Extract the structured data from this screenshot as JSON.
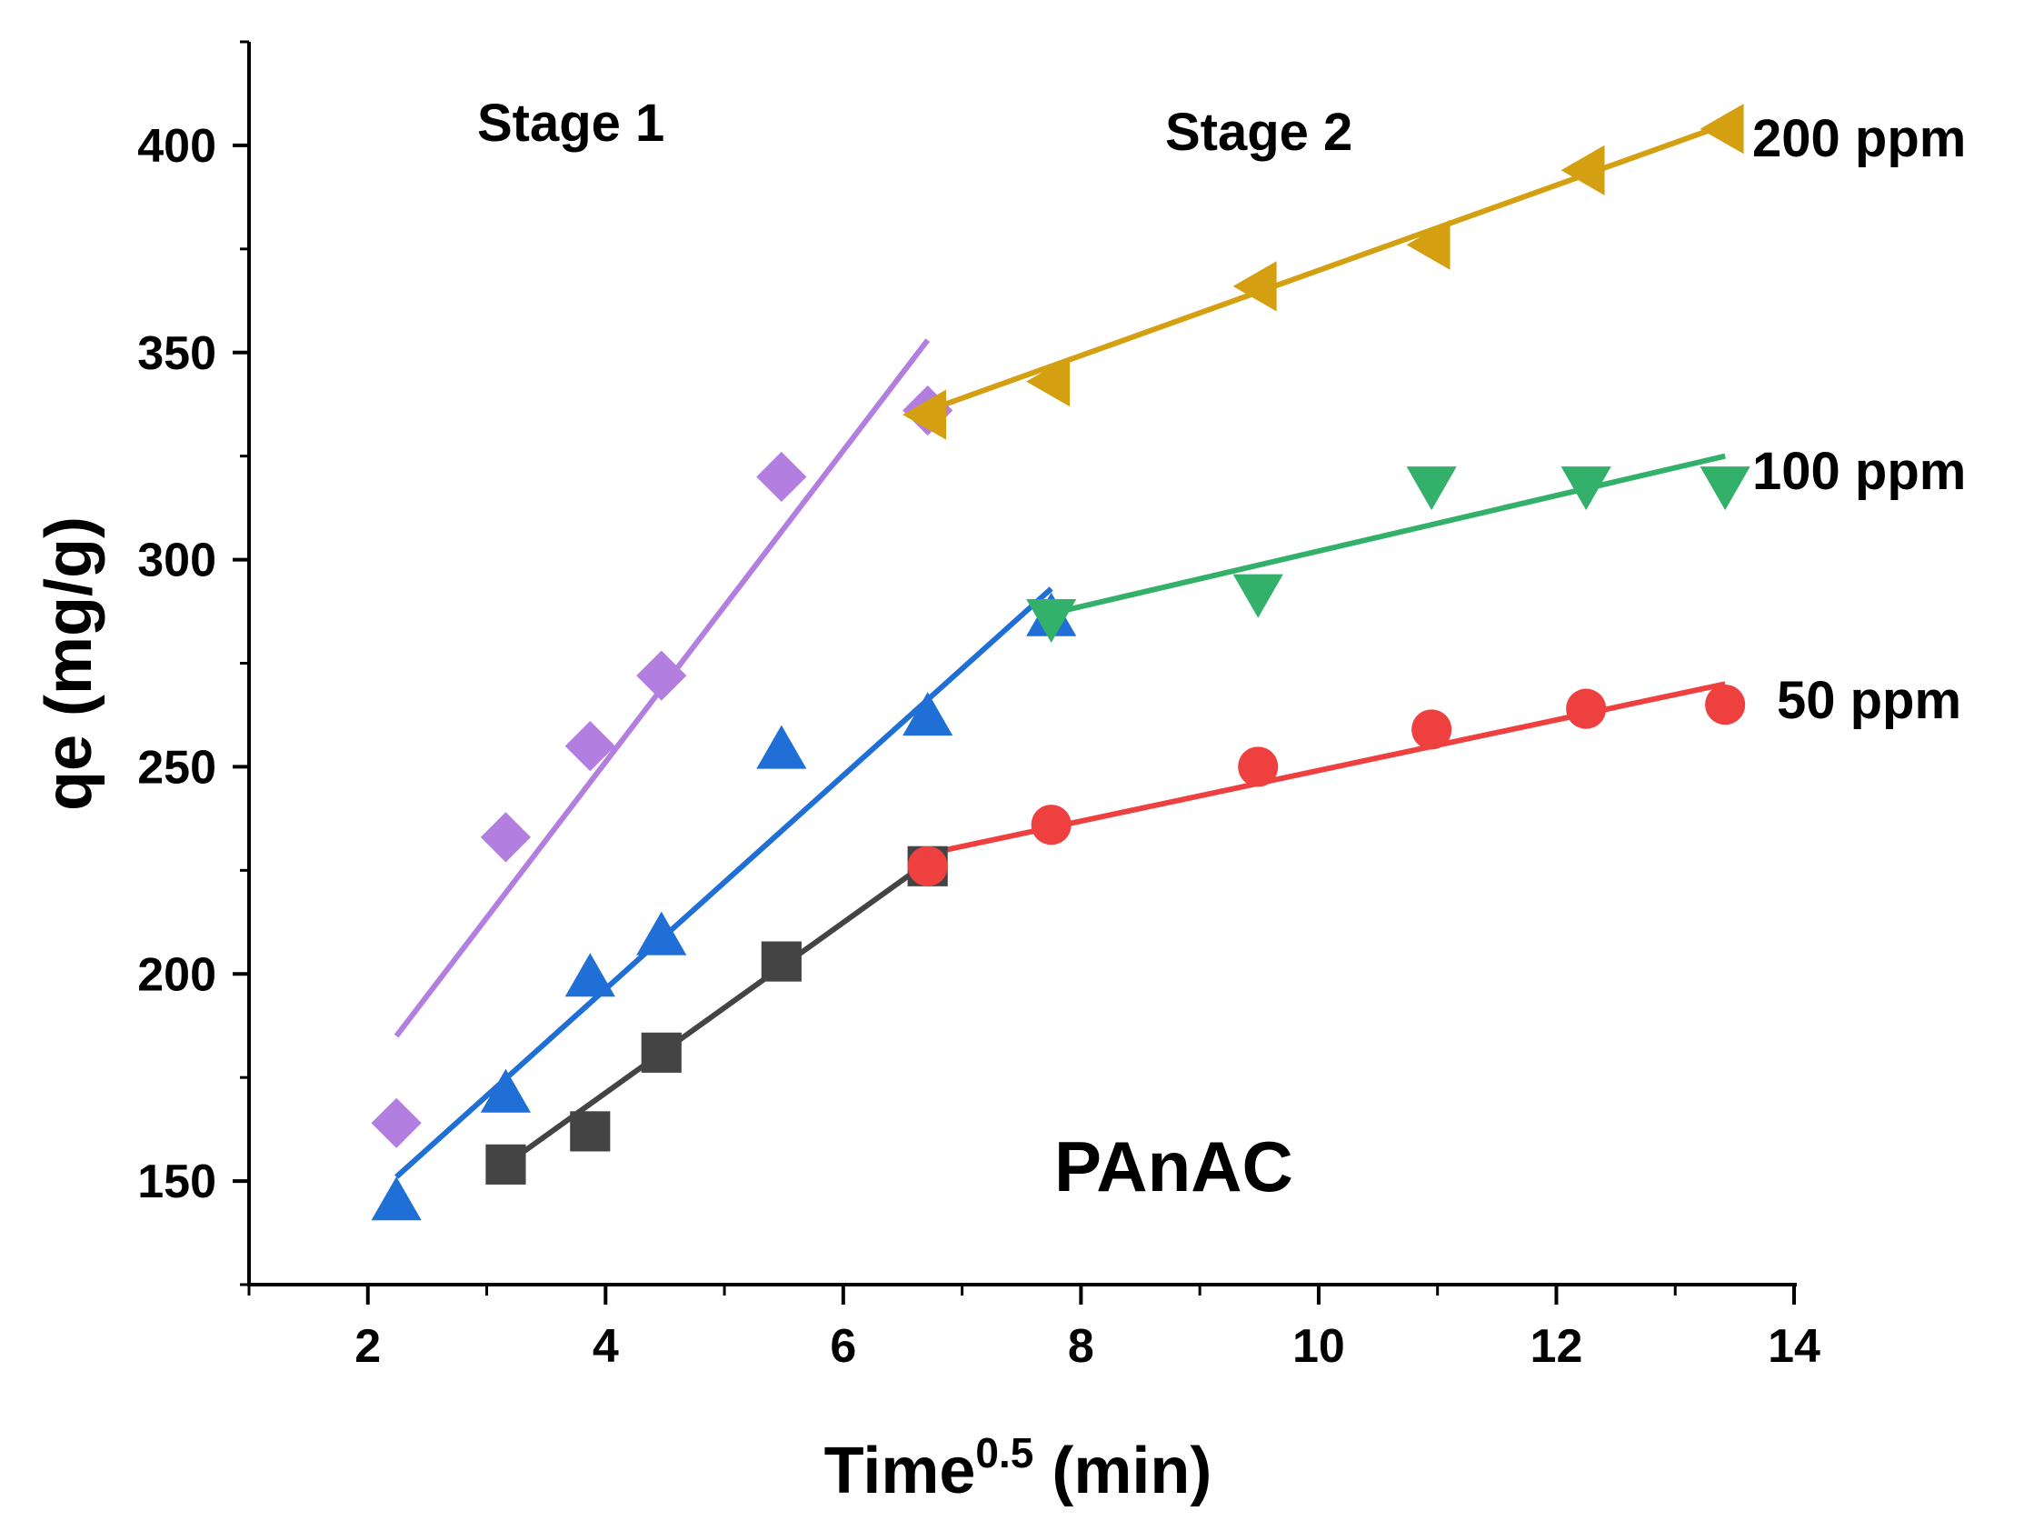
{
  "chart_data": {
    "type": "scatter",
    "title": "",
    "xlabel": {
      "base": "Time",
      "sup": "0.5",
      "suffix": " (min)"
    },
    "ylabel": "qe (mg/g)",
    "xlim": [
      1,
      14
    ],
    "ylim": [
      125,
      425
    ],
    "xticks": [
      2,
      4,
      6,
      8,
      10,
      12,
      14
    ],
    "yticks": [
      150,
      200,
      250,
      300,
      350,
      400
    ],
    "grid": false,
    "annotations": {
      "stage1": "Stage 1",
      "stage2": "Stage 2",
      "label_200": "200 ppm",
      "label_100": "100 ppm",
      "label_50": "50 ppm",
      "material": "PAnAC"
    },
    "colors": {
      "purple": "#b27ee0",
      "blue": "#1f6fd6",
      "dark": "#444444",
      "gold": "#d4a012",
      "green": "#33b06a",
      "red": "#ef4040",
      "material": "#8b1010"
    },
    "series": [
      {
        "marker": "diamond",
        "color": "#b27ee0",
        "points": [
          [
            2.24,
            164
          ],
          [
            3.16,
            233
          ],
          [
            3.87,
            255
          ],
          [
            4.47,
            272
          ],
          [
            5.48,
            320
          ],
          [
            6.71,
            336
          ]
        ],
        "fit": [
          [
            2.24,
            185
          ],
          [
            6.71,
            353
          ]
        ]
      },
      {
        "marker": "triangle-up",
        "color": "#1f6fd6",
        "points": [
          [
            2.24,
            145
          ],
          [
            3.16,
            171
          ],
          [
            3.87,
            199
          ],
          [
            4.47,
            209
          ],
          [
            5.48,
            254
          ],
          [
            6.71,
            262
          ],
          [
            7.75,
            286
          ]
        ],
        "fit": [
          [
            2.24,
            151
          ],
          [
            7.75,
            293
          ]
        ]
      },
      {
        "marker": "square",
        "color": "#444444",
        "points": [
          [
            3.16,
            154
          ],
          [
            3.87,
            162
          ],
          [
            4.47,
            181
          ],
          [
            5.48,
            203
          ],
          [
            6.71,
            226
          ]
        ],
        "fit": [
          [
            3.16,
            154
          ],
          [
            6.71,
            227
          ]
        ]
      },
      {
        "marker": "triangle-left",
        "color": "#d4a012",
        "points": [
          [
            6.71,
            335
          ],
          [
            7.75,
            343
          ],
          [
            9.49,
            366
          ],
          [
            10.95,
            376
          ],
          [
            12.25,
            394
          ],
          [
            13.42,
            404
          ]
        ],
        "fit": [
          [
            6.71,
            336
          ],
          [
            13.42,
            405
          ]
        ]
      },
      {
        "marker": "triangle-down",
        "color": "#33b06a",
        "points": [
          [
            7.75,
            286
          ],
          [
            9.49,
            292
          ],
          [
            10.95,
            318
          ],
          [
            12.25,
            318
          ],
          [
            13.42,
            318
          ]
        ],
        "fit": [
          [
            7.75,
            287
          ],
          [
            13.42,
            325
          ]
        ]
      },
      {
        "marker": "circle",
        "color": "#ef4040",
        "points": [
          [
            6.71,
            226
          ],
          [
            7.75,
            236
          ],
          [
            9.49,
            250
          ],
          [
            10.95,
            259
          ],
          [
            12.25,
            264
          ],
          [
            13.42,
            265
          ]
        ],
        "fit": [
          [
            6.71,
            229
          ],
          [
            13.42,
            270
          ]
        ]
      }
    ]
  }
}
